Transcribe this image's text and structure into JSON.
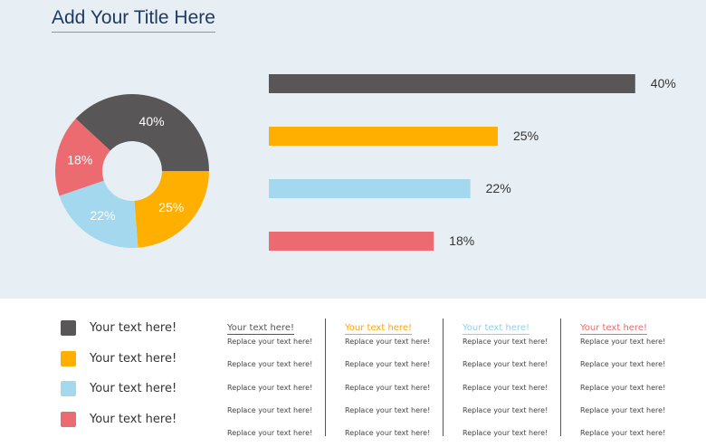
{
  "title": "Add Your Title Here",
  "chart_data": [
    {
      "type": "pie",
      "donut": true,
      "values": [
        40,
        25,
        22,
        18
      ],
      "labels": [
        "40%",
        "25%",
        "22%",
        "18%"
      ],
      "colors": [
        "#595657",
        "#ffaf00",
        "#a3d8ef",
        "#ec6b71"
      ]
    },
    {
      "type": "bar",
      "orientation": "horizontal",
      "values": [
        40,
        25,
        22,
        18
      ],
      "labels": [
        "40%",
        "25%",
        "22%",
        "18%"
      ],
      "colors": [
        "#595657",
        "#ffaf00",
        "#a3d8ef",
        "#ec6b71"
      ]
    }
  ],
  "legend": [
    "Your text here!",
    "Your text here!",
    "Your text here!",
    "Your text here!"
  ],
  "columns": [
    {
      "header": "Your text here!",
      "color": "#555555",
      "rows": [
        "Replace your text here!",
        "Replace your text here!",
        "Replace your text here!",
        "Replace your text here!",
        "Replace your text here!"
      ]
    },
    {
      "header": "Your text here!",
      "color": "#ffa500",
      "rows": [
        "Replace your text here!",
        "Replace your text here!",
        "Replace your text here!",
        "Replace your text here!",
        "Replace your text here!"
      ]
    },
    {
      "header": "Your text here!",
      "color": "#8fd0ee",
      "rows": [
        "Replace your text here!",
        "Replace your text here!",
        "Replace your text here!",
        "Replace your text here!",
        "Replace your text here!"
      ]
    },
    {
      "header": "Your text here!",
      "color": "#e86a6a",
      "rows": [
        "Replace your text here!",
        "Replace your text here!",
        "Replace your text here!",
        "Replace your text here!",
        "Replace your text here!"
      ]
    }
  ]
}
